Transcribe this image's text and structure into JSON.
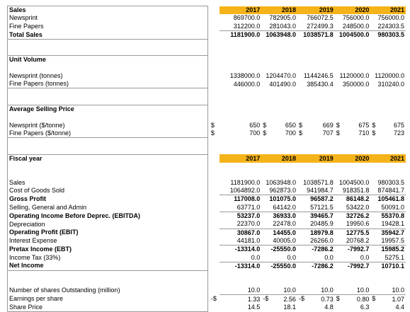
{
  "years": [
    "2017",
    "2018",
    "2019",
    "2020",
    "2021"
  ],
  "section1": {
    "title": "Sales",
    "rows": [
      {
        "label": "Newsprint",
        "values": [
          "869700.0",
          "782905.0",
          "766072.5",
          "756000.0",
          "756000.0"
        ]
      },
      {
        "label": "Fine Papers",
        "values": [
          "312200.0",
          "281043.0",
          "272499.3",
          "248500.0",
          "224303.5"
        ]
      },
      {
        "label": "Total Sales",
        "values": [
          "1181900.0",
          "1063948.0",
          "1038571.8",
          "1004500.0",
          "980303.5"
        ],
        "bold": true
      }
    ]
  },
  "section2": {
    "title": "Unit Volume",
    "rows": [
      {
        "label": "Newsprint (tonnes)",
        "values": [
          "1338000.0",
          "1204470.0",
          "1144246.5",
          "1120000.0",
          "1120000.0"
        ]
      },
      {
        "label": "Fine Papers (tonnes)",
        "values": [
          "446000.0",
          "401490.0",
          "385430.4",
          "350000.0",
          "310240.0"
        ]
      }
    ]
  },
  "section3": {
    "title": "Average Selling Price",
    "currency": "$",
    "rows": [
      {
        "label": "Newsprint ($/tonne)",
        "values": [
          "650",
          "650",
          "669",
          "675",
          "675"
        ]
      },
      {
        "label": "Fine Papers ($/tonne)",
        "values": [
          "700",
          "700",
          "707",
          "710",
          "723"
        ]
      }
    ]
  },
  "section4": {
    "title": "Fiscal year",
    "rows": [
      {
        "label": "Sales",
        "values": [
          "1181900.0",
          "1063948.0",
          "1038571.8",
          "1004500.0",
          "980303.5"
        ]
      },
      {
        "label": "Cost of Goods Sold",
        "values": [
          "1064892.0",
          "962873.0",
          "941984.7",
          "918351.8",
          "874841.7"
        ]
      },
      {
        "label": "Gross Profit",
        "values": [
          "117008.0",
          "101075.0",
          "96587.2",
          "86148.2",
          "105461.8"
        ],
        "bold": true
      },
      {
        "label": "Selling, General and Admin",
        "values": [
          "63771.0",
          "64142.0",
          "57121.5",
          "53422.0",
          "50091.0"
        ]
      },
      {
        "label": "Operating Income Before Deprec. (EBITDA)",
        "values": [
          "53237.0",
          "36933.0",
          "39465.7",
          "32726.2",
          "55370.8"
        ],
        "bold": true
      },
      {
        "label": "Depreciation",
        "values": [
          "22370.0",
          "22478.0",
          "20485.9",
          "19950.6",
          "19428.1"
        ]
      },
      {
        "label": "Operating Profit (EBIT)",
        "values": [
          "30867.0",
          "14455.0",
          "18979.8",
          "12775.5",
          "35942.7"
        ],
        "bold": true
      },
      {
        "label": "Interest Expense",
        "values": [
          "44181.0",
          "40005.0",
          "26266.0",
          "20768.2",
          "19957.5"
        ]
      },
      {
        "label": "Pretax Income (EBT)",
        "values": [
          "-13314.0",
          "-25550.0",
          "-7286.2",
          "-7992.7",
          "15985.2"
        ],
        "bold": true
      },
      {
        "label": "Income Tax (33%)",
        "values": [
          "0.0",
          "0.0",
          "0.0",
          "0.0",
          "5275.1"
        ]
      },
      {
        "label": "Net Income",
        "values": [
          "-13314.0",
          "-25550.0",
          "-7286.2",
          "-7992.7",
          "10710.1"
        ],
        "bold": true
      }
    ]
  },
  "section5": {
    "rows": [
      {
        "label": "Number of shares Outstanding (million)",
        "values": [
          "10.0",
          "10.0",
          "10.0",
          "10.0",
          "10.0"
        ]
      },
      {
        "label": "Earnings per share",
        "prefix": "-$",
        "values": [
          "1.33",
          "2.56",
          "0.73",
          "0.80",
          "1.07"
        ],
        "seps": [
          "-$",
          "-$",
          "$",
          "$"
        ]
      },
      {
        "label": "Share Price",
        "values": [
          "14.5",
          "18.1",
          "4.8",
          "6.3",
          "4.4"
        ]
      }
    ]
  }
}
